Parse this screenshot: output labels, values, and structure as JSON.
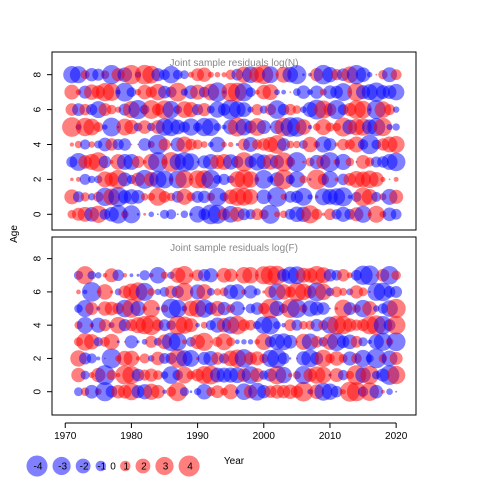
{
  "chart_data": {
    "type": "scatter",
    "subtype": "bubble-residuals",
    "xlabel": "Year",
    "ylabel": "Age",
    "x_ticks": [
      1970,
      1980,
      1990,
      2000,
      2010,
      2020
    ],
    "xlim": [
      1968,
      2023
    ],
    "colors": {
      "positive": "#ff0000",
      "negative": "#0000ff"
    },
    "panels": [
      {
        "title": "Joint sample residuals log(N)",
        "ages": [
          0,
          1,
          2,
          3,
          4,
          5,
          6,
          7,
          8
        ],
        "y_ticks": [
          0,
          2,
          4,
          6,
          8
        ],
        "ylim": [
          -0.9,
          9.3
        ],
        "years": [
          1971,
          2020
        ],
        "seed": 7
      },
      {
        "title": "Joint sample residuals log(F)",
        "ages": [
          0,
          1,
          2,
          3,
          4,
          5,
          6,
          7
        ],
        "y_ticks": [
          0,
          2,
          4,
          6,
          8
        ],
        "ylim": [
          -1.4,
          9.3
        ],
        "years": [
          1972,
          2020
        ],
        "seed": 23
      }
    ],
    "legend": {
      "values": [
        -4,
        -3,
        -2,
        -1,
        0,
        1,
        2,
        3,
        4
      ],
      "labels": [
        "-4",
        "-3",
        "-2",
        "-1",
        "0",
        "1",
        "2",
        "3",
        "4"
      ]
    }
  }
}
